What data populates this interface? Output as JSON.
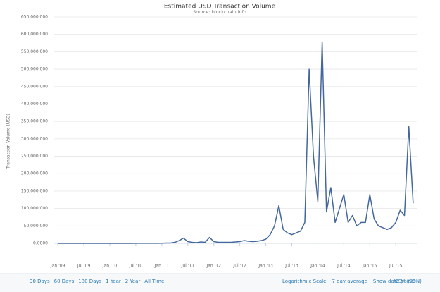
{
  "chart_data": {
    "type": "line",
    "title": "Estimated USD Transaction Volume",
    "subtitle": "Source: blockchain.info",
    "y_label": "Transaction Volume (USD)",
    "x": [
      "2009-01",
      "2009-02",
      "2009-03",
      "2009-04",
      "2009-05",
      "2009-06",
      "2009-07",
      "2009-08",
      "2009-09",
      "2009-10",
      "2009-11",
      "2009-12",
      "2010-01",
      "2010-02",
      "2010-03",
      "2010-04",
      "2010-05",
      "2010-06",
      "2010-07",
      "2010-08",
      "2010-09",
      "2010-10",
      "2010-11",
      "2010-12",
      "2011-01",
      "2011-02",
      "2011-03",
      "2011-04",
      "2011-05",
      "2011-06",
      "2011-07",
      "2011-08",
      "2011-09",
      "2011-10",
      "2011-11",
      "2011-12",
      "2012-01",
      "2012-02",
      "2012-03",
      "2012-04",
      "2012-05",
      "2012-06",
      "2012-07",
      "2012-08",
      "2012-09",
      "2012-10",
      "2012-11",
      "2012-12",
      "2013-01",
      "2013-02",
      "2013-03",
      "2013-04",
      "2013-05",
      "2013-06",
      "2013-07",
      "2013-08",
      "2013-09",
      "2013-10",
      "2013-11",
      "2013-12",
      "2014-01",
      "2014-02",
      "2014-03",
      "2014-04",
      "2014-05",
      "2014-06",
      "2014-07",
      "2014-08",
      "2014-09",
      "2014-10",
      "2014-11",
      "2014-12",
      "2015-01",
      "2015-02",
      "2015-03",
      "2015-04",
      "2015-05",
      "2015-06",
      "2015-07",
      "2015-08",
      "2015-09",
      "2015-10",
      "2015-11"
    ],
    "series": [
      {
        "name": "Transaction Volume",
        "color": "#44689b",
        "values": [
          0,
          0,
          0,
          0,
          0,
          0,
          0,
          0,
          0,
          0,
          0,
          0,
          100000,
          100000,
          100000,
          100000,
          100000,
          100000,
          200000,
          200000,
          200000,
          300000,
          300000,
          300000,
          500000,
          1000000,
          1000000,
          3000000,
          8000000,
          15000000,
          5000000,
          3000000,
          2000000,
          4000000,
          3000000,
          17000000,
          5000000,
          3000000,
          3000000,
          3000000,
          3000000,
          4000000,
          5000000,
          8000000,
          6000000,
          5000000,
          6000000,
          8000000,
          12000000,
          25000000,
          50000000,
          108000000,
          40000000,
          30000000,
          25000000,
          30000000,
          35000000,
          60000000,
          500000000,
          250000000,
          120000000,
          578000000,
          90000000,
          160000000,
          60000000,
          100000000,
          140000000,
          60000000,
          80000000,
          50000000,
          60000000,
          60000000,
          140000000,
          70000000,
          50000000,
          45000000,
          40000000,
          45000000,
          60000000,
          95000000,
          80000000,
          335000000,
          115000000
        ]
      }
    ],
    "xlim": [
      "2008-12",
      "2015-12"
    ],
    "xticks": [
      {
        "value": "2009-01",
        "label": "Jan '09"
      },
      {
        "value": "2009-07",
        "label": "Jul '09"
      },
      {
        "value": "2010-01",
        "label": "Jan '10"
      },
      {
        "value": "2010-07",
        "label": "Jul '10"
      },
      {
        "value": "2011-01",
        "label": "Jan '11"
      },
      {
        "value": "2011-07",
        "label": "Jul '11"
      },
      {
        "value": "2012-01",
        "label": "Jan '12"
      },
      {
        "value": "2012-07",
        "label": "Jul '12"
      },
      {
        "value": "2013-01",
        "label": "Jan '13"
      },
      {
        "value": "2013-07",
        "label": "Jul '13"
      },
      {
        "value": "2014-01",
        "label": "Jan '14"
      },
      {
        "value": "2014-07",
        "label": "Jul '14"
      },
      {
        "value": "2015-01",
        "label": "Jan '15"
      },
      {
        "value": "2015-07",
        "label": "Jul '15"
      }
    ],
    "ylim": [
      0,
      650000000
    ],
    "yticks": [
      {
        "value": 0,
        "label": "0.0000"
      },
      {
        "value": 50000000,
        "label": "50,000,000"
      },
      {
        "value": 100000000,
        "label": "100,000,000"
      },
      {
        "value": 150000000,
        "label": "150,000,000"
      },
      {
        "value": 200000000,
        "label": "200,000,000"
      },
      {
        "value": 250000000,
        "label": "250,000,000"
      },
      {
        "value": 300000000,
        "label": "300,000,000"
      },
      {
        "value": 350000000,
        "label": "350,000,000"
      },
      {
        "value": 400000000,
        "label": "400,000,000"
      },
      {
        "value": 450000000,
        "label": "450,000,000"
      },
      {
        "value": 500000000,
        "label": "500,000,000"
      },
      {
        "value": 550000000,
        "label": "550,000,000"
      },
      {
        "value": 600000000,
        "label": "600,000,000"
      },
      {
        "value": 650000000,
        "label": "650,000,000"
      }
    ],
    "grid": true,
    "log_scale": false
  },
  "controls": {
    "ranges": [
      "30 Days",
      "60 Days",
      "180 Days",
      "1 Year",
      "2 Year",
      "All Time"
    ],
    "options": [
      "Logarithmic Scale",
      "7 day average",
      "Show data points"
    ],
    "exports": [
      "(CSV",
      "JSON)"
    ]
  }
}
